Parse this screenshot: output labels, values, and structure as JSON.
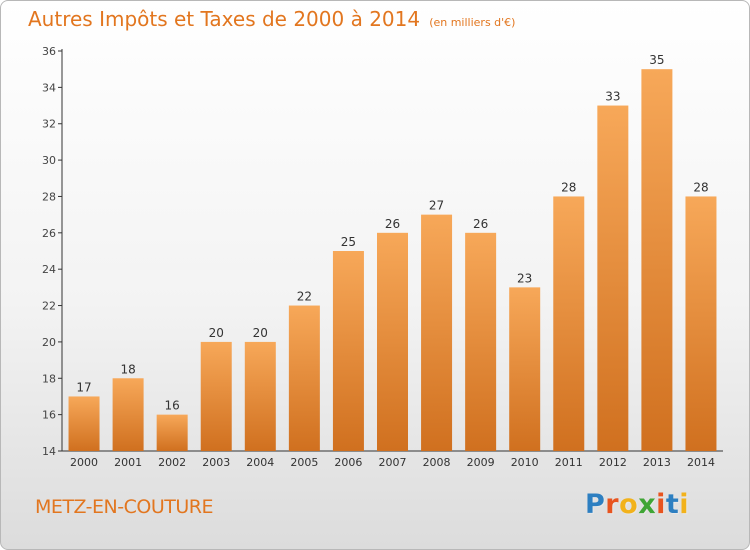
{
  "chart_data": {
    "type": "bar",
    "title": "Autres Impôts et Taxes de 2000 à 2014",
    "subtitle": "(en milliers d'€)",
    "categories": [
      "2000",
      "2001",
      "2002",
      "2003",
      "2004",
      "2005",
      "2006",
      "2007",
      "2008",
      "2009",
      "2010",
      "2011",
      "2012",
      "2013",
      "2014"
    ],
    "values": [
      17,
      18,
      16,
      20,
      20,
      22,
      25,
      26,
      27,
      26,
      23,
      28,
      33,
      35,
      28
    ],
    "ylim": [
      14,
      36
    ],
    "yticks": [
      14,
      16,
      18,
      20,
      22,
      24,
      26,
      28,
      30,
      32,
      34,
      36
    ],
    "grid": false,
    "bar_color": "#e2761f",
    "xlabel": "",
    "ylabel": ""
  },
  "commune": "METZ-EN-COUTURE",
  "logo": {
    "letters": [
      "P",
      "r",
      "o",
      "x",
      "i",
      "t",
      "i"
    ],
    "colors": [
      "#2d7fc1",
      "#e8541f",
      "#f2b21b",
      "#3fa535",
      "#e8541f",
      "#2d7fc1",
      "#f2b21b"
    ]
  },
  "colors": {
    "accent": "#e2761f",
    "bar_light": "#f7a859",
    "bar_dark": "#d0701f"
  }
}
